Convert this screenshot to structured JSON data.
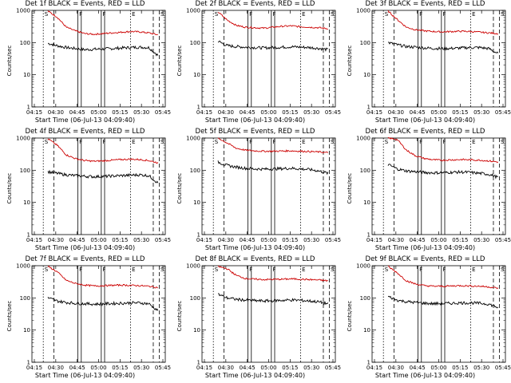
{
  "chart_data": [
    {
      "type": "line",
      "title": "Det 1f BLACK = Events, RED = LLD",
      "xlabel": "Start Time (06-Jul-13 04:09:40)",
      "ylabel": "Counts/sec",
      "x_ticks": [
        "04:15",
        "04:30",
        "04:45",
        "05:00",
        "05:15",
        "05:30",
        "05:45"
      ],
      "y_ticks": [
        "1",
        "10",
        "100",
        "1000"
      ],
      "yscale": "log",
      "ylim": [
        1,
        1000
      ],
      "region_labels": [
        "S",
        "F",
        "F",
        "E",
        "S"
      ],
      "series": [
        {
          "name": "Events",
          "color": "#000000",
          "values": [
            95,
            80,
            70,
            65,
            60,
            62,
            63,
            65,
            68,
            70,
            72,
            70,
            40
          ]
        },
        {
          "name": "LLD",
          "color": "#cc0000",
          "values": [
            950,
            620,
            300,
            230,
            190,
            180,
            190,
            200,
            210,
            220,
            215,
            200,
            175
          ]
        }
      ]
    },
    {
      "type": "line",
      "title": "Det 2f BLACK = Events, RED = LLD",
      "xlabel": "Start Time (06-Jul-13 04:09:40)",
      "ylabel": "Counts/sec",
      "x_ticks": [
        "04:15",
        "04:30",
        "04:45",
        "05:00",
        "05:15",
        "05:30",
        "05:45"
      ],
      "y_ticks": [
        "1",
        "10",
        "100",
        "1000"
      ],
      "yscale": "log",
      "ylim": [
        1,
        1000
      ],
      "region_labels": [
        "S",
        "F",
        "F",
        "E",
        "S"
      ],
      "series": [
        {
          "name": "Events",
          "color": "#000000",
          "values": [
            110,
            80,
            75,
            72,
            70,
            68,
            70,
            72,
            74,
            72,
            70,
            66,
            60
          ]
        },
        {
          "name": "LLD",
          "color": "#cc0000",
          "values": [
            900,
            500,
            340,
            300,
            290,
            280,
            300,
            320,
            330,
            310,
            300,
            290,
            270
          ]
        }
      ]
    },
    {
      "type": "line",
      "title": "Det 3f BLACK = Events, RED = LLD",
      "xlabel": "Start Time (06-Jul-13 04:09:40)",
      "ylabel": "Counts/sec",
      "x_ticks": [
        "04:15",
        "04:30",
        "04:45",
        "05:00",
        "05:15",
        "05:30",
        "05:45"
      ],
      "y_ticks": [
        "1",
        "10",
        "100",
        "1000"
      ],
      "yscale": "log",
      "ylim": [
        1,
        1000
      ],
      "region_labels": [
        "S",
        "F",
        "F",
        "E",
        "S"
      ],
      "series": [
        {
          "name": "Events",
          "color": "#000000",
          "values": [
            100,
            85,
            75,
            72,
            68,
            66,
            65,
            66,
            68,
            70,
            70,
            65,
            45
          ]
        },
        {
          "name": "LLD",
          "color": "#cc0000",
          "values": [
            950,
            520,
            300,
            250,
            230,
            220,
            215,
            220,
            225,
            220,
            210,
            200,
            190
          ]
        }
      ]
    },
    {
      "type": "line",
      "title": "Det 4f BLACK = Events, RED = LLD",
      "xlabel": "Start Time (06-Jul-13 04:09:40)",
      "ylabel": "Counts/sec",
      "x_ticks": [
        "04:15",
        "04:30",
        "04:45",
        "05:00",
        "05:15",
        "05:30",
        "05:45"
      ],
      "y_ticks": [
        "1",
        "10",
        "100",
        "1000"
      ],
      "yscale": "log",
      "ylim": [
        1,
        1000
      ],
      "region_labels": [
        "S",
        "F",
        "F",
        "E",
        "S"
      ],
      "series": [
        {
          "name": "Events",
          "color": "#000000",
          "values": [
            90,
            80,
            72,
            68,
            65,
            63,
            64,
            66,
            68,
            70,
            72,
            68,
            40
          ]
        },
        {
          "name": "LLD",
          "color": "#cc0000",
          "values": [
            950,
            600,
            300,
            230,
            200,
            190,
            195,
            205,
            215,
            220,
            215,
            200,
            170
          ]
        }
      ]
    },
    {
      "type": "line",
      "title": "Det 5f BLACK = Events, RED = LLD",
      "xlabel": "Start Time (06-Jul-13 04:09:40)",
      "ylabel": "Counts/sec",
      "x_ticks": [
        "04:15",
        "04:30",
        "04:45",
        "05:00",
        "05:15",
        "05:30",
        "05:45"
      ],
      "y_ticks": [
        "1",
        "10",
        "100",
        "1000"
      ],
      "yscale": "log",
      "ylim": [
        1,
        1000
      ],
      "region_labels": [
        "S",
        "F",
        "F",
        "E",
        "S"
      ],
      "series": [
        {
          "name": "Events",
          "color": "#000000",
          "values": [
            180,
            140,
            125,
            115,
            110,
            108,
            110,
            112,
            115,
            110,
            105,
            95,
            80
          ]
        },
        {
          "name": "LLD",
          "color": "#cc0000",
          "values": [
            1000,
            700,
            480,
            420,
            400,
            390,
            390,
            395,
            400,
            390,
            380,
            370,
            350
          ]
        }
      ]
    },
    {
      "type": "line",
      "title": "Det 6f BLACK = Events, RED = LLD",
      "xlabel": "Start Time (06-Jul-13 04:09:40)",
      "ylabel": "Counts/sec",
      "x_ticks": [
        "04:15",
        "04:30",
        "04:45",
        "05:00",
        "05:15",
        "05:30",
        "05:45"
      ],
      "y_ticks": [
        "1",
        "10",
        "100",
        "1000"
      ],
      "yscale": "log",
      "ylim": [
        1,
        1000
      ],
      "region_labels": [
        "S",
        "F",
        "F",
        "E",
        "S"
      ],
      "series": [
        {
          "name": "Events",
          "color": "#000000",
          "values": [
            150,
            110,
            95,
            90,
            85,
            83,
            84,
            86,
            88,
            85,
            80,
            75,
            60
          ]
        },
        {
          "name": "LLD",
          "color": "#cc0000",
          "values": [
            1000,
            900,
            420,
            280,
            230,
            210,
            205,
            210,
            215,
            210,
            205,
            195,
            180
          ]
        }
      ]
    },
    {
      "type": "line",
      "title": "Det 7f BLACK = Events, RED = LLD",
      "xlabel": "Start Time (06-Jul-13 04:09:40)",
      "ylabel": "Counts/sec",
      "x_ticks": [
        "04:15",
        "04:30",
        "04:45",
        "05:00",
        "05:15",
        "05:30",
        "05:45"
      ],
      "y_ticks": [
        "1",
        "10",
        "100",
        "1000"
      ],
      "yscale": "log",
      "ylim": [
        1,
        1000
      ],
      "region_labels": [
        "S",
        "F",
        "F",
        "E",
        "S"
      ],
      "series": [
        {
          "name": "Events",
          "color": "#000000",
          "values": [
            100,
            80,
            72,
            68,
            66,
            64,
            65,
            67,
            68,
            70,
            70,
            66,
            40
          ]
        },
        {
          "name": "LLD",
          "color": "#cc0000",
          "values": [
            950,
            650,
            350,
            280,
            250,
            235,
            240,
            245,
            250,
            245,
            240,
            230,
            210
          ]
        }
      ]
    },
    {
      "type": "line",
      "title": "Det 8f BLACK = Events, RED = LLD",
      "xlabel": "Start Time (06-Jul-13 04:09:40)",
      "ylabel": "Counts/sec",
      "x_ticks": [
        "04:15",
        "04:30",
        "04:45",
        "05:00",
        "05:15",
        "05:30",
        "05:45"
      ],
      "y_ticks": [
        "1",
        "10",
        "100",
        "1000"
      ],
      "yscale": "log",
      "ylim": [
        1,
        1000
      ],
      "region_labels": [
        "S",
        "F",
        "F",
        "E",
        "S"
      ],
      "series": [
        {
          "name": "Events",
          "color": "#000000",
          "values": [
            130,
            100,
            90,
            85,
            82,
            80,
            82,
            84,
            86,
            84,
            80,
            75,
            65
          ]
        },
        {
          "name": "LLD",
          "color": "#cc0000",
          "values": [
            950,
            800,
            500,
            400,
            380,
            370,
            375,
            380,
            390,
            380,
            370,
            360,
            340
          ]
        }
      ]
    },
    {
      "type": "line",
      "title": "Det 9f BLACK = Events, RED = LLD",
      "xlabel": "Start Time (06-Jul-13 04:09:40)",
      "ylabel": "Counts/sec",
      "x_ticks": [
        "04:15",
        "04:30",
        "04:45",
        "05:00",
        "05:15",
        "05:30",
        "05:45"
      ],
      "y_ticks": [
        "1",
        "10",
        "100",
        "1000"
      ],
      "yscale": "log",
      "ylim": [
        1,
        1000
      ],
      "region_labels": [
        "S",
        "F",
        "F",
        "E",
        "S"
      ],
      "series": [
        {
          "name": "Events",
          "color": "#000000",
          "values": [
            110,
            85,
            76,
            72,
            68,
            66,
            67,
            68,
            70,
            70,
            68,
            64,
            50
          ]
        },
        {
          "name": "LLD",
          "color": "#cc0000",
          "values": [
            950,
            600,
            340,
            270,
            240,
            230,
            230,
            235,
            240,
            235,
            230,
            220,
            200
          ]
        }
      ]
    }
  ]
}
